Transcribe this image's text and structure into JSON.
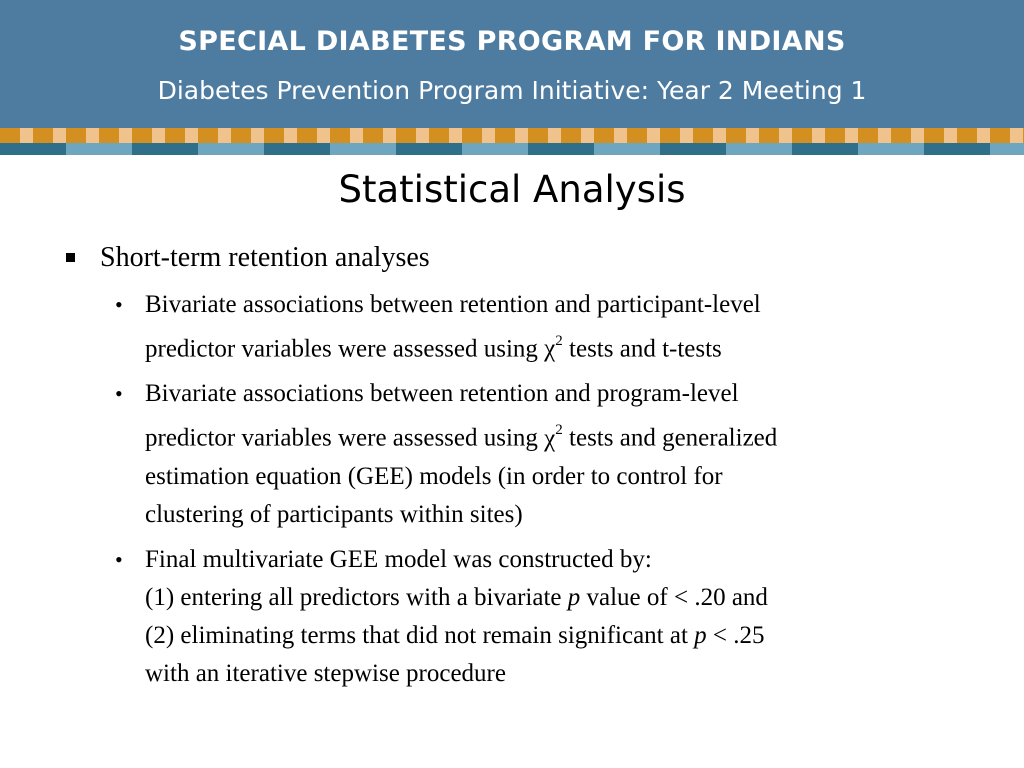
{
  "header": {
    "program": "SPECIAL DIABETES PROGRAM FOR INDIANS",
    "subtitle": "Diabetes Prevention Program Initiative:  Year 2 Meeting 1"
  },
  "colors": {
    "header_bg": "#4e7ba0",
    "stripe_orange": "#d38f1f",
    "stripe_tan": "#efc38b",
    "stripe_teal": "#2f6f8a",
    "stripe_lightblue": "#6ea6c0"
  },
  "slide": {
    "title": "Statistical Analysis",
    "bullet1": "Short-term retention analyses",
    "b1": {
      "l1": "Bivariate associations between retention and participant-level",
      "l2a": "predictor variables were assessed using ",
      "chi": "χ",
      "sup": "2",
      "l2b": " tests and t-tests"
    },
    "b2": {
      "l1": "Bivariate associations between retention and program-level",
      "l2a": "predictor variables were assessed using ",
      "chi": "χ",
      "sup": "2",
      "l2b": " tests and generalized",
      "l3": "estimation equation (GEE) models (in order to control for",
      "l4": "clustering of participants within sites)"
    },
    "b3": {
      "l1": "Final multivariate GEE model was constructed by:",
      "l2a": "(1) entering all predictors with a bivariate ",
      "p1": "p",
      "l2b": " value of < .20 and",
      "l3a": "(2) eliminating terms that did not remain significant at ",
      "p2": "p",
      "l3b": " < .25",
      "l4": "with an iterative stepwise procedure"
    }
  }
}
